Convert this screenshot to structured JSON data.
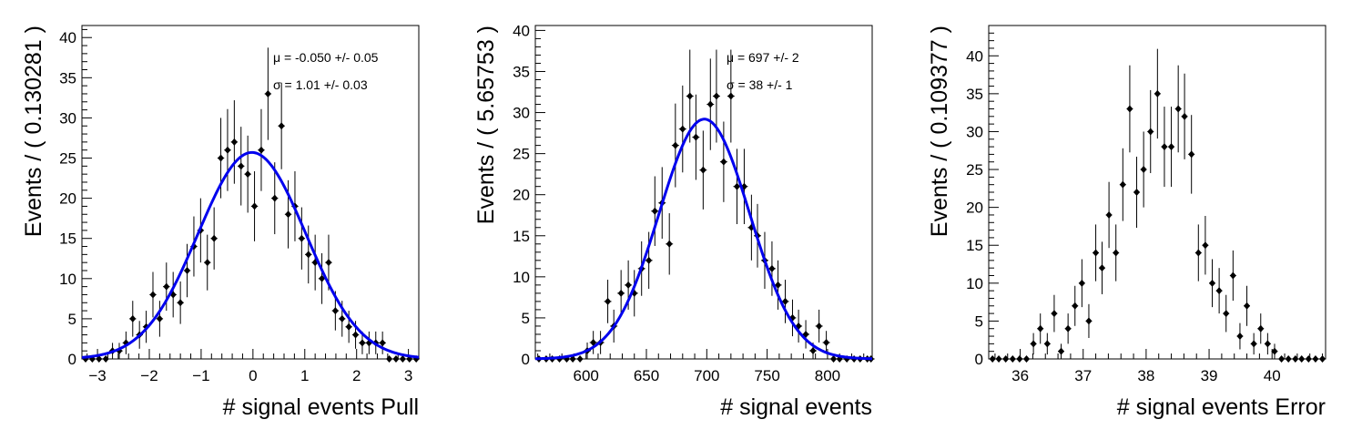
{
  "chart_data": [
    {
      "type": "scatter",
      "xlabel": "# signal events Pull",
      "ylabel": "Events / ( 0.130281 )",
      "xlim": [
        -3.3,
        3.2
      ],
      "ylim": [
        0,
        41.5
      ],
      "xticks": [
        -3,
        -2,
        -1,
        0,
        1,
        2,
        3
      ],
      "xtick_labels": [
        "−3",
        "−2",
        "−1",
        "0",
        "1",
        "2",
        "3"
      ],
      "yticks": [
        0,
        5,
        10,
        15,
        20,
        25,
        30,
        35,
        40
      ],
      "ytick_labels": [
        "0",
        "5",
        "10",
        "15",
        "20",
        "25",
        "30",
        "35",
        "40"
      ],
      "annotations": [
        "μ = -0.050 +/- 0.05",
        "σ =  1.01 +/- 0.03"
      ],
      "x": [
        -3.23,
        -3.1,
        -2.97,
        -2.84,
        -2.71,
        -2.58,
        -2.45,
        -2.32,
        -2.19,
        -2.06,
        -1.93,
        -1.8,
        -1.67,
        -1.54,
        -1.4,
        -1.27,
        -1.14,
        -1.01,
        -0.88,
        -0.75,
        -0.62,
        -0.49,
        -0.36,
        -0.23,
        -0.1,
        0.03,
        0.16,
        0.29,
        0.42,
        0.55,
        0.68,
        0.81,
        0.94,
        1.07,
        1.2,
        1.33,
        1.46,
        1.59,
        1.72,
        1.85,
        1.98,
        2.11,
        2.24,
        2.37,
        2.5,
        2.63,
        2.76,
        2.89,
        3.02,
        3.15
      ],
      "y": [
        0,
        0,
        0,
        0,
        1,
        1,
        2,
        5,
        3,
        4,
        8,
        5,
        9,
        8,
        7,
        11,
        14,
        16,
        12,
        15,
        25,
        26,
        27,
        24,
        23,
        19,
        26,
        33,
        20,
        29,
        18,
        19,
        15,
        13,
        12,
        10,
        12,
        6,
        5,
        4,
        3,
        2,
        2,
        2,
        2,
        0,
        0,
        0,
        0,
        0
      ],
      "fit": {
        "type": "gaussian",
        "mean": -0.02,
        "sigma": 1.04,
        "amplitude": 25.7,
        "color": "#0000ee"
      },
      "marker_color": "#000000"
    },
    {
      "type": "scatter",
      "xlabel": "# signal events",
      "ylabel": "Events / ( 5.65753 )",
      "xlim": [
        558,
        837
      ],
      "ylim": [
        0,
        40.6
      ],
      "xticks": [
        600,
        650,
        700,
        750,
        800
      ],
      "xtick_labels": [
        "600",
        "650",
        "700",
        "750",
        "800"
      ],
      "yticks": [
        0,
        5,
        10,
        15,
        20,
        25,
        30,
        35,
        40
      ],
      "ytick_labels": [
        "0",
        "5",
        "10",
        "15",
        "20",
        "25",
        "30",
        "35",
        "40"
      ],
      "annotations": [
        "μ =  697 +/- 2",
        "σ =  38 +/- 1"
      ],
      "x": [
        561,
        567,
        572,
        578,
        584,
        589,
        595,
        601,
        606,
        612,
        618,
        623,
        629,
        635,
        640,
        646,
        652,
        657,
        663,
        669,
        674,
        680,
        686,
        691,
        697,
        703,
        708,
        714,
        720,
        725,
        731,
        737,
        742,
        748,
        754,
        759,
        765,
        771,
        776,
        782,
        788,
        793,
        799,
        805,
        810,
        816,
        822,
        827,
        833,
        836
      ],
      "y": [
        0,
        0,
        0,
        0,
        0,
        0,
        0,
        1,
        2,
        2,
        7,
        4,
        8,
        9,
        8,
        11,
        12,
        18,
        19,
        14,
        26,
        28,
        32,
        27,
        23,
        31,
        32,
        24,
        32,
        21,
        21,
        16,
        15,
        12,
        11,
        9,
        7,
        5,
        4,
        3,
        1,
        4,
        2,
        0,
        0,
        0,
        0,
        0,
        0,
        0
      ],
      "fit": {
        "type": "gaussian",
        "mean": 698,
        "sigma": 37.5,
        "amplitude": 29.2,
        "color": "#0000ee"
      },
      "marker_color": "#000000"
    },
    {
      "type": "scatter",
      "xlabel": "# signal events Error",
      "ylabel": "Events / ( 0.109377 )",
      "xlim": [
        35.5,
        40.85
      ],
      "ylim": [
        0,
        44
      ],
      "xticks": [
        36,
        37,
        38,
        39,
        40
      ],
      "xtick_labels": [
        "36",
        "37",
        "38",
        "39",
        "40"
      ],
      "yticks": [
        0,
        5,
        10,
        15,
        20,
        25,
        30,
        35,
        40
      ],
      "ytick_labels": [
        "0",
        "5",
        "10",
        "15",
        "20",
        "25",
        "30",
        "35",
        "40"
      ],
      "annotations": [],
      "x": [
        35.56,
        35.66,
        35.77,
        35.88,
        35.99,
        36.1,
        36.21,
        36.32,
        36.43,
        36.54,
        36.65,
        36.76,
        36.87,
        36.98,
        37.09,
        37.2,
        37.3,
        37.41,
        37.52,
        37.63,
        37.74,
        37.85,
        37.96,
        38.07,
        38.18,
        38.29,
        38.4,
        38.51,
        38.61,
        38.72,
        38.83,
        38.94,
        39.05,
        39.16,
        39.27,
        39.38,
        39.49,
        39.6,
        39.71,
        39.82,
        39.93,
        40.04,
        40.15,
        40.26,
        40.37,
        40.47,
        40.58,
        40.69,
        40.8
      ],
      "y": [
        0,
        0,
        0,
        0,
        0,
        0,
        2,
        4,
        2,
        6,
        1,
        4,
        7,
        10,
        5,
        14,
        12,
        19,
        14,
        23,
        33,
        22,
        25,
        30,
        35,
        28,
        28,
        33,
        32,
        27,
        14,
        15,
        10,
        9,
        6,
        11,
        3,
        7,
        2,
        4,
        2,
        1,
        0,
        0,
        0,
        0,
        0,
        0,
        0
      ],
      "marker_color": "#000000"
    }
  ]
}
